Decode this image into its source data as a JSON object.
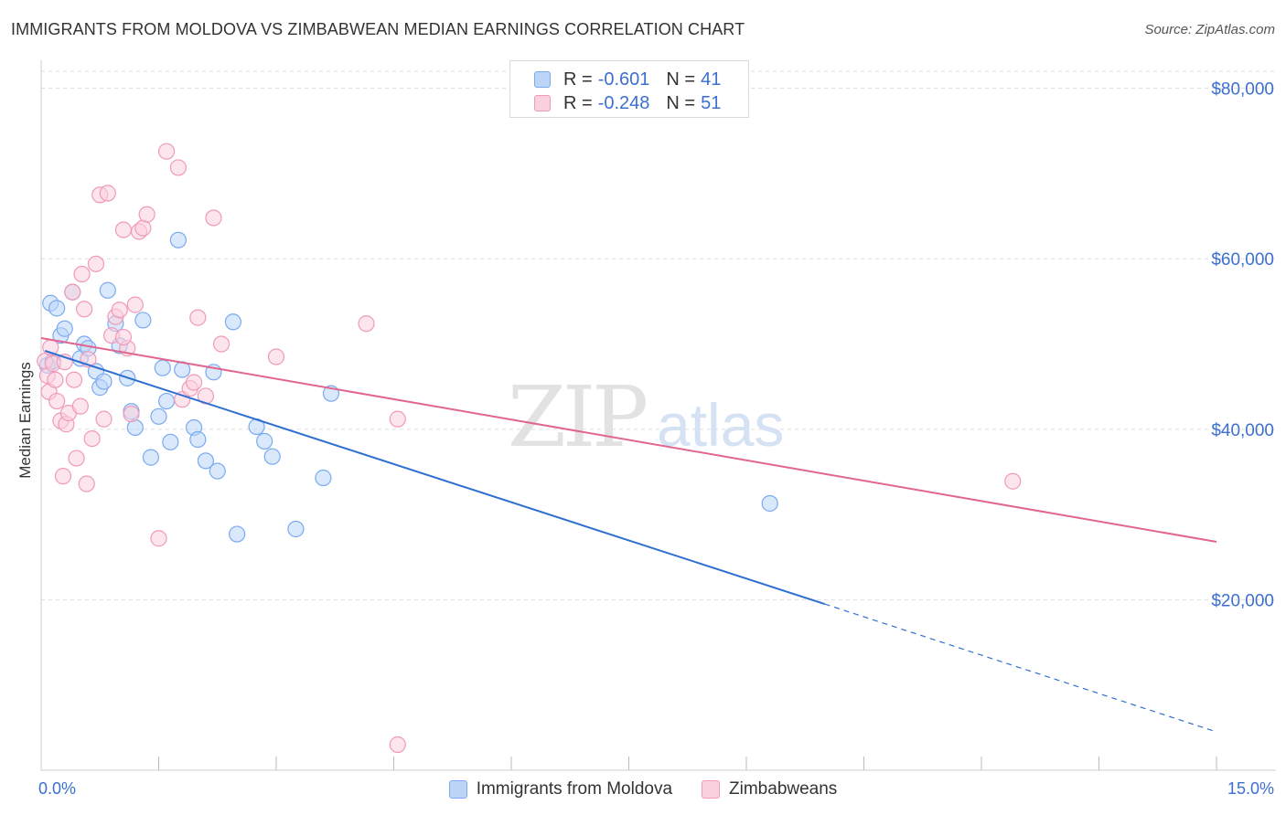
{
  "title": "IMMIGRANTS FROM MOLDOVA VS ZIMBABWEAN MEDIAN EARNINGS CORRELATION CHART",
  "source": "Source: ZipAtlas.com",
  "watermark": {
    "zip": "ZIP",
    "atlas": "atlas"
  },
  "legend_stats": [
    {
      "r_label": "R =",
      "r_value": "-0.601",
      "n_label": "N =",
      "n_value": "41",
      "color": "#7aaaf0",
      "fill": "#bcd5f7"
    },
    {
      "r_label": "R =",
      "r_value": "-0.248",
      "n_label": "N =",
      "n_value": "51",
      "color": "#f09ab8",
      "fill": "#fbd0de"
    }
  ],
  "colors": {
    "series1_stroke": "#7aaaf0",
    "series1_fill": "#bcd5f7",
    "series1_line": "#2f6fd1",
    "series2_stroke": "#f09ab8",
    "series2_fill": "#fbd0de",
    "series2_line": "#e0668f",
    "axis_label": "#3b6fd1",
    "grid": "#dddddd"
  },
  "chart_data": {
    "type": "scatter",
    "xlabel": "",
    "ylabel": "Median Earnings",
    "xlim": [
      0,
      15
    ],
    "ylim": [
      0,
      82000
    ],
    "x_tick_labels": [
      "0.0%",
      "15.0%"
    ],
    "y_ticks": [
      {
        "value": 20000,
        "label": "$20,000"
      },
      {
        "value": 40000,
        "label": "$40,000"
      },
      {
        "value": 60000,
        "label": "$60,000"
      },
      {
        "value": 80000,
        "label": "$80,000"
      }
    ],
    "grid": true,
    "legend_position": "bottom",
    "series": [
      {
        "name": "Immigrants from Moldova",
        "trend": {
          "x": [
            0.05,
            10.0
          ],
          "y": [
            49200,
            19500
          ],
          "dashed_to": [
            15.0,
            4500
          ]
        },
        "points": [
          [
            0.12,
            54800
          ],
          [
            0.2,
            54200
          ],
          [
            0.25,
            51000
          ],
          [
            0.3,
            51800
          ],
          [
            0.4,
            56100
          ],
          [
            0.5,
            48300
          ],
          [
            0.55,
            50000
          ],
          [
            0.6,
            49500
          ],
          [
            0.7,
            46800
          ],
          [
            0.75,
            44900
          ],
          [
            0.8,
            45600
          ],
          [
            0.85,
            56300
          ],
          [
            0.95,
            52400
          ],
          [
            1.0,
            49800
          ],
          [
            1.1,
            46000
          ],
          [
            1.15,
            42100
          ],
          [
            1.2,
            40200
          ],
          [
            1.3,
            52800
          ],
          [
            1.4,
            36700
          ],
          [
            1.5,
            41500
          ],
          [
            1.55,
            47200
          ],
          [
            1.6,
            43300
          ],
          [
            1.65,
            38500
          ],
          [
            1.75,
            62200
          ],
          [
            1.8,
            47000
          ],
          [
            1.95,
            40200
          ],
          [
            2.0,
            38800
          ],
          [
            2.1,
            36300
          ],
          [
            2.2,
            46700
          ],
          [
            2.25,
            35100
          ],
          [
            2.45,
            52600
          ],
          [
            2.5,
            27700
          ],
          [
            2.75,
            40300
          ],
          [
            2.85,
            38600
          ],
          [
            2.95,
            36800
          ],
          [
            3.25,
            28300
          ],
          [
            3.6,
            34300
          ],
          [
            3.7,
            44200
          ],
          [
            9.3,
            31300
          ],
          [
            0.08,
            47500
          ],
          [
            0.15,
            48000
          ]
        ]
      },
      {
        "name": "Zimbabweans",
        "trend": {
          "x": [
            0.0,
            15.0
          ],
          "y": [
            50700,
            26800
          ]
        },
        "points": [
          [
            0.05,
            48000
          ],
          [
            0.08,
            46300
          ],
          [
            0.1,
            44400
          ],
          [
            0.12,
            49600
          ],
          [
            0.15,
            47700
          ],
          [
            0.18,
            45800
          ],
          [
            0.2,
            43300
          ],
          [
            0.25,
            41000
          ],
          [
            0.28,
            34500
          ],
          [
            0.3,
            47900
          ],
          [
            0.32,
            40600
          ],
          [
            0.35,
            41900
          ],
          [
            0.4,
            56100
          ],
          [
            0.42,
            45800
          ],
          [
            0.45,
            36600
          ],
          [
            0.5,
            42700
          ],
          [
            0.52,
            58200
          ],
          [
            0.55,
            54100
          ],
          [
            0.58,
            33600
          ],
          [
            0.6,
            48200
          ],
          [
            0.65,
            38900
          ],
          [
            0.7,
            59400
          ],
          [
            0.75,
            67500
          ],
          [
            0.8,
            41200
          ],
          [
            0.85,
            67700
          ],
          [
            0.9,
            51000
          ],
          [
            0.95,
            53200
          ],
          [
            1.0,
            54000
          ],
          [
            1.05,
            63400
          ],
          [
            1.1,
            49500
          ],
          [
            1.15,
            41800
          ],
          [
            1.2,
            54600
          ],
          [
            1.25,
            63200
          ],
          [
            1.3,
            63600
          ],
          [
            1.35,
            65200
          ],
          [
            1.5,
            27200
          ],
          [
            1.6,
            72600
          ],
          [
            1.75,
            70700
          ],
          [
            1.8,
            43500
          ],
          [
            1.9,
            44800
          ],
          [
            1.95,
            45500
          ],
          [
            2.0,
            53100
          ],
          [
            2.1,
            43900
          ],
          [
            2.2,
            64800
          ],
          [
            2.3,
            50000
          ],
          [
            3.0,
            48500
          ],
          [
            4.15,
            52400
          ],
          [
            4.55,
            41200
          ],
          [
            4.55,
            3000
          ],
          [
            12.4,
            33900
          ],
          [
            1.05,
            50800
          ]
        ]
      }
    ]
  }
}
